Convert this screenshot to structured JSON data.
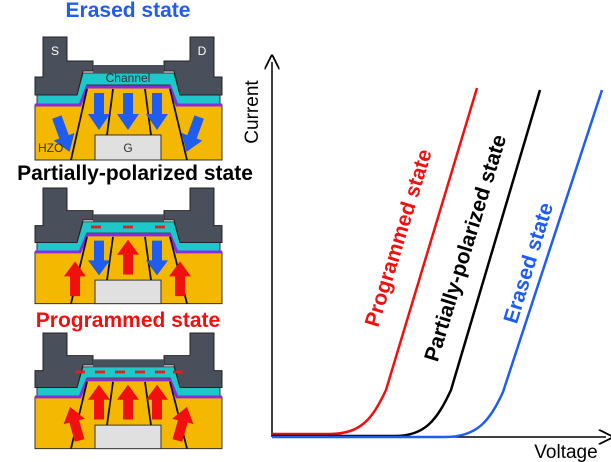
{
  "panels": [
    {
      "title": "Erased state",
      "labels": {
        "source": "S",
        "drain": "D",
        "channel": "Channel",
        "ferroelectric": "HZO",
        "gate": "G"
      }
    },
    {
      "title": "Partially-polarized state"
    },
    {
      "title": "Programmed state"
    }
  ],
  "plot": {
    "y_axis_label": "Current",
    "x_axis_label": "Voltage",
    "curves": [
      {
        "label": "Programmed state"
      },
      {
        "label": "Partially-polarized state"
      },
      {
        "label": "Erased state"
      }
    ]
  }
}
